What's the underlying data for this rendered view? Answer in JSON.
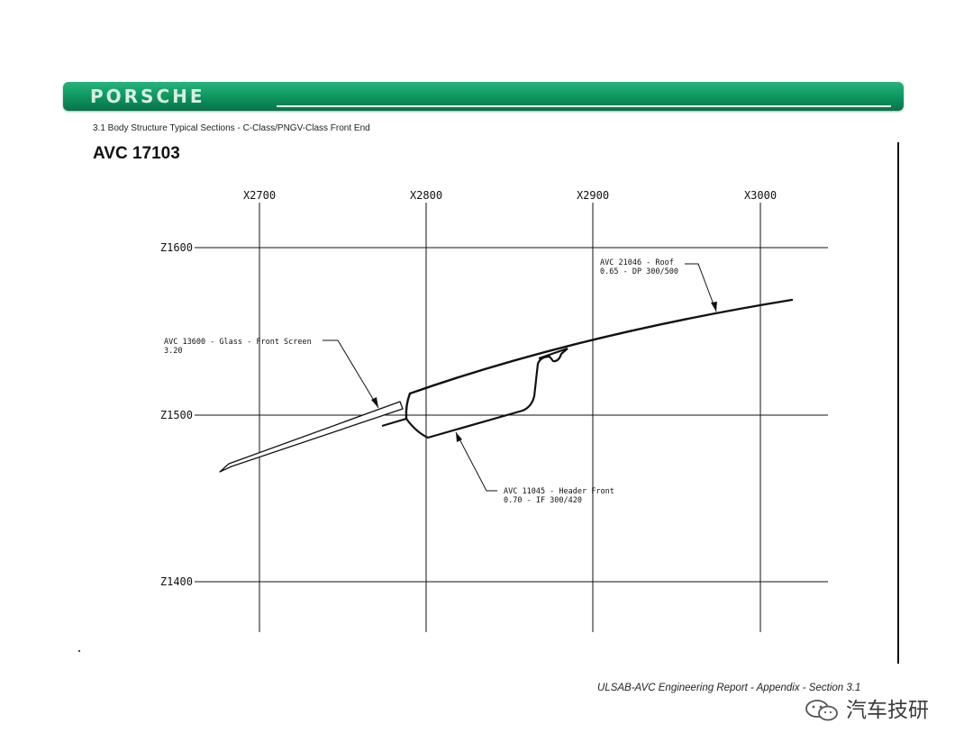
{
  "header": {
    "brand": "PORSCHE",
    "section_caption": "3.1  Body Structure Typical Sections - C-Class/PNGV-Class Front End",
    "title": "AVC 17103"
  },
  "drawing": {
    "x_grid_labels": [
      "X2700",
      "X2800",
      "X2900",
      "X3000"
    ],
    "z_grid_labels": [
      "Z1600",
      "Z1500",
      "Z1400"
    ],
    "callouts": {
      "roof": {
        "line1": "AVC 21046 - Roof",
        "line2": "0.65 - DP 300/500"
      },
      "glass": {
        "line1": "AVC 13600 - Glass - Front Screen",
        "line2": "3.20"
      },
      "header": {
        "line1": "AVC 11045 - Header Front",
        "line2": "0.70 - IF 300/420"
      }
    }
  },
  "footer": {
    "report": "ULSAB-AVC Engineering Report - Appendix - Section 3.1"
  },
  "watermark": {
    "text": "汽车技研",
    "icon": "wechat-icon"
  },
  "colors": {
    "banner_green": "#0f9a62",
    "ink": "#111111"
  }
}
